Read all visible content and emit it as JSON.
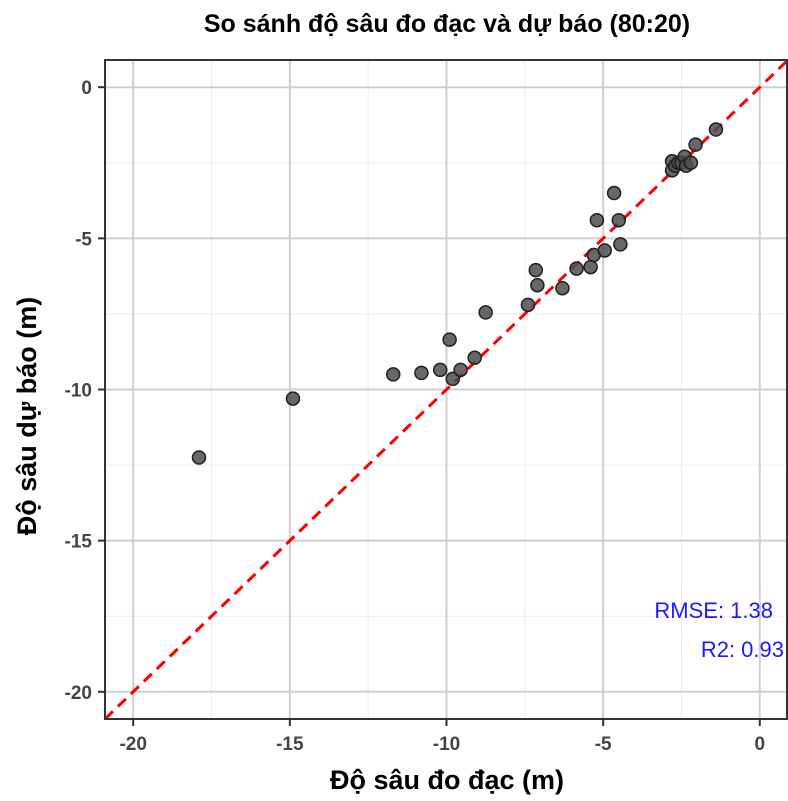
{
  "chart_data": {
    "type": "scatter",
    "title": "So sánh độ sâu đo đạc và dự báo (80:20)",
    "xlabel": "Độ sâu đo đạc (m)",
    "ylabel": "Độ sâu dự báo (m)",
    "xlim": [
      -20.9,
      0.9
    ],
    "ylim": [
      -20.9,
      0.9
    ],
    "xticks": [
      -20,
      -15,
      -10,
      -5,
      0
    ],
    "yticks": [
      -20,
      -15,
      -10,
      -5,
      0
    ],
    "xtick_labels": [
      "-20",
      "-15",
      "-10",
      "-5",
      "0"
    ],
    "ytick_labels": [
      "-20",
      "-15",
      "-10",
      "-5",
      "0"
    ],
    "grid": true,
    "reference_line": {
      "type": "y=x",
      "style": "dashed",
      "color": "#ff0000"
    },
    "annotations": [
      {
        "text": "RMSE: 1.38"
      },
      {
        "text": "R2: 0.93"
      }
    ],
    "points": [
      {
        "x": -17.9,
        "y": -12.25
      },
      {
        "x": -14.9,
        "y": -10.3
      },
      {
        "x": -11.7,
        "y": -9.5
      },
      {
        "x": -10.8,
        "y": -9.45
      },
      {
        "x": -10.2,
        "y": -9.35
      },
      {
        "x": -9.9,
        "y": -8.35
      },
      {
        "x": -9.8,
        "y": -9.65
      },
      {
        "x": -9.55,
        "y": -9.35
      },
      {
        "x": -9.1,
        "y": -8.95
      },
      {
        "x": -8.75,
        "y": -7.45
      },
      {
        "x": -7.4,
        "y": -7.2
      },
      {
        "x": -7.15,
        "y": -6.05
      },
      {
        "x": -7.1,
        "y": -6.55
      },
      {
        "x": -6.3,
        "y": -6.65
      },
      {
        "x": -5.85,
        "y": -6.0
      },
      {
        "x": -5.4,
        "y": -5.95
      },
      {
        "x": -5.3,
        "y": -5.55
      },
      {
        "x": -5.2,
        "y": -4.4
      },
      {
        "x": -4.95,
        "y": -5.4
      },
      {
        "x": -4.65,
        "y": -3.5
      },
      {
        "x": -4.5,
        "y": -4.4
      },
      {
        "x": -4.45,
        "y": -5.2
      },
      {
        "x": -2.8,
        "y": -2.45
      },
      {
        "x": -2.8,
        "y": -2.75
      },
      {
        "x": -2.7,
        "y": -2.6
      },
      {
        "x": -2.6,
        "y": -2.5
      },
      {
        "x": -2.5,
        "y": -2.5
      },
      {
        "x": -2.4,
        "y": -2.3
      },
      {
        "x": -2.35,
        "y": -2.6
      },
      {
        "x": -2.2,
        "y": -2.5
      },
      {
        "x": -2.05,
        "y": -1.9
      },
      {
        "x": -1.4,
        "y": -1.4
      }
    ],
    "point_color": "#4d4d4d",
    "point_edge_color": "#1f1f1f",
    "annotation_color": "#1a1aff"
  }
}
